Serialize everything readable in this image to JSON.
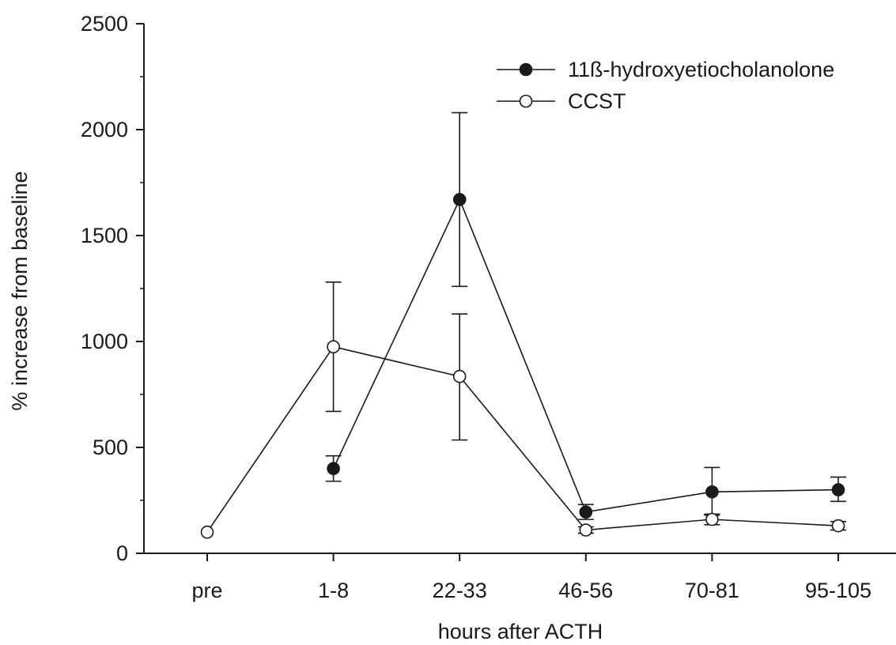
{
  "chart_data": {
    "type": "line",
    "title": "",
    "xlabel": "hours after ACTH",
    "ylabel": "% increase from baseline",
    "categories": [
      "pre",
      "1-8",
      "22-33",
      "46-56",
      "70-81",
      "95-105"
    ],
    "ylim": [
      0,
      2500
    ],
    "yticks": [
      "0",
      "500",
      "1000",
      "1500",
      "2000",
      "2500"
    ],
    "grid": false,
    "legend_position": "top-right",
    "series": [
      {
        "name": "11ß-hydroxyetiocholanolone",
        "marker": "filled-circle",
        "color": "#1a1a1a",
        "values": [
          null,
          400,
          1670,
          195,
          290,
          300
        ],
        "error_upper": [
          null,
          460,
          2080,
          230,
          405,
          360
        ],
        "error_lower": [
          null,
          340,
          1260,
          160,
          180,
          245
        ]
      },
      {
        "name": "CCST",
        "marker": "open-circle",
        "color": "#1a1a1a",
        "values": [
          100,
          975,
          835,
          110,
          160,
          130
        ],
        "error_upper": [
          null,
          1280,
          1130,
          125,
          185,
          150
        ],
        "error_lower": [
          null,
          670,
          535,
          95,
          135,
          110
        ]
      }
    ]
  }
}
